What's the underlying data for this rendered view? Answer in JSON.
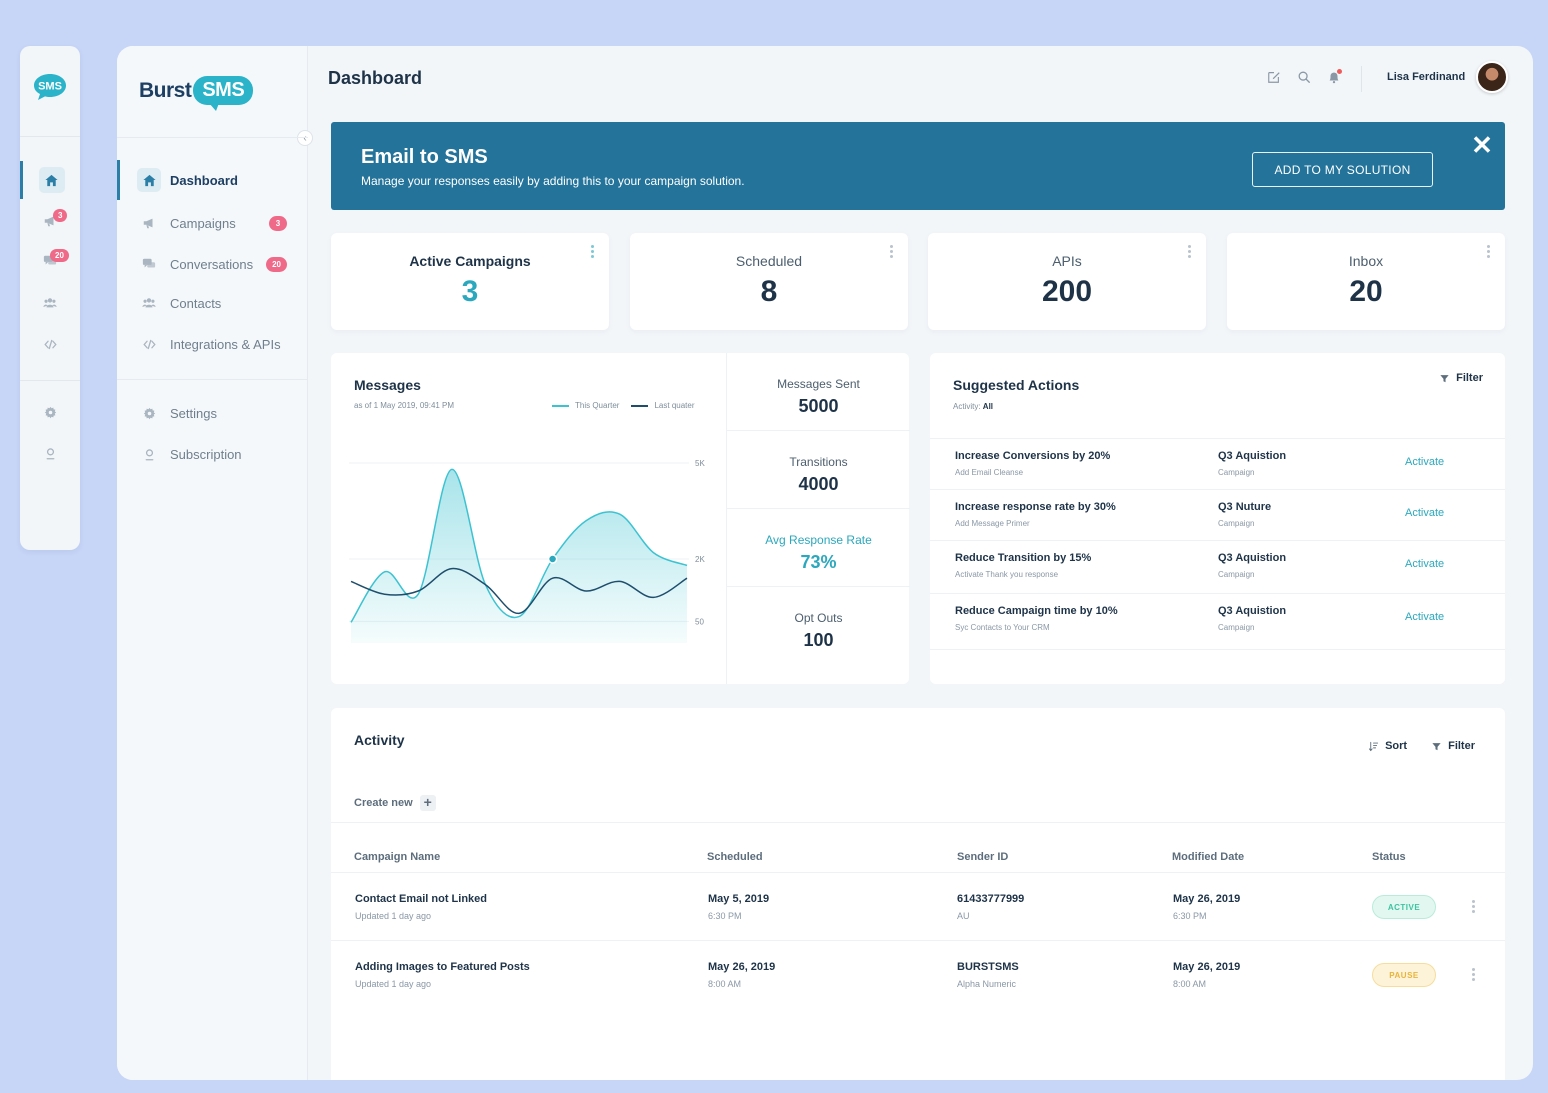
{
  "brand": {
    "name": "Burst",
    "badge": "SMS",
    "rail_logo": "SMS",
    "colors": {
      "accent": "#2ba8bd",
      "primary": "#23739a",
      "badge": "#ef6a88"
    }
  },
  "rail": {
    "items": [
      {
        "icon": "home-icon",
        "badge": ""
      },
      {
        "icon": "megaphone-icon",
        "badge": "3"
      },
      {
        "icon": "chat-icon",
        "badge": "20"
      },
      {
        "icon": "users-icon",
        "badge": ""
      },
      {
        "icon": "code-icon",
        "badge": ""
      },
      {
        "icon": "gear-icon",
        "badge": ""
      },
      {
        "icon": "user-badge-icon",
        "badge": ""
      }
    ]
  },
  "sidebar": {
    "items": [
      {
        "label": "Dashboard",
        "icon": "home-icon",
        "badge": ""
      },
      {
        "label": "Campaigns",
        "icon": "megaphone-icon",
        "badge": "3"
      },
      {
        "label": "Conversations",
        "icon": "chat-icon",
        "badge": "20"
      },
      {
        "label": "Contacts",
        "icon": "users-icon",
        "badge": ""
      },
      {
        "label": "Integrations & APIs",
        "icon": "code-icon",
        "badge": ""
      },
      {
        "label": "Settings",
        "icon": "gear-icon",
        "badge": ""
      },
      {
        "label": "Subscription",
        "icon": "user-badge-icon",
        "badge": ""
      }
    ]
  },
  "header": {
    "title": "Dashboard",
    "user_name": "Lisa Ferdinand",
    "icons": [
      "edit-icon",
      "search-icon",
      "bell-icon"
    ]
  },
  "banner": {
    "title": "Email to SMS",
    "subtitle": "Manage your responses easily by adding this to your campaign solution.",
    "button": "ADD TO MY SOLUTION"
  },
  "stats": [
    {
      "label": "Active Campaigns",
      "value": "3"
    },
    {
      "label": "Scheduled",
      "value": "8"
    },
    {
      "label": "APIs",
      "value": "200"
    },
    {
      "label": "Inbox",
      "value": "20"
    }
  ],
  "messages": {
    "title": "Messages",
    "subtitle": "as of 1 May 2019, 09:41 PM",
    "legend": [
      "This Quarter",
      "Last quater"
    ],
    "metrics": [
      {
        "label": "Messages Sent",
        "value": "5000"
      },
      {
        "label": "Transitions",
        "value": "4000"
      },
      {
        "label": "Avg Response Rate",
        "value": "73%"
      },
      {
        "label": "Opt Outs",
        "value": "100"
      }
    ]
  },
  "chart_data": {
    "type": "area",
    "title": "",
    "xlabel": "",
    "ylabel": "",
    "y_ticks": [
      "5K",
      "2K",
      "50"
    ],
    "x": [
      0,
      1,
      2,
      3,
      4,
      5,
      6,
      7,
      8,
      9,
      10
    ],
    "series": [
      {
        "name": "This Quarter",
        "values": [
          20,
          1600,
          900,
          4800,
          1200,
          200,
          2000,
          3200,
          3400,
          2200,
          1800
        ],
        "color": "#3cc3d1"
      },
      {
        "name": "Last quater",
        "values": [
          1300,
          900,
          1000,
          1700,
          1200,
          300,
          1400,
          1000,
          1300,
          800,
          1400
        ],
        "color": "#1e4e6c"
      }
    ]
  },
  "suggested": {
    "title": "Suggested Actions",
    "activity_label": "Activity:",
    "activity_value": "All",
    "filter": "Filter",
    "rows": [
      {
        "name": "Increase Conversions by 20%",
        "desc": "Add Email Cleanse",
        "campaign": "Q3 Aquistion",
        "type": "Campaign",
        "action": "Activate"
      },
      {
        "name": "Increase response rate by 30%",
        "desc": "Add Message Primer",
        "campaign": "Q3 Nuture",
        "type": "Campaign",
        "action": "Activate"
      },
      {
        "name": "Reduce Transition by 15%",
        "desc": "Activate Thank you response",
        "campaign": "Q3 Aquistion",
        "type": "Campaign",
        "action": "Activate"
      },
      {
        "name": "Reduce Campaign time by 10%",
        "desc": "Syc Contacts to Your CRM",
        "campaign": "Q3 Aquistion",
        "type": "Campaign",
        "action": "Activate"
      }
    ]
  },
  "activity": {
    "title": "Activity",
    "sort": "Sort",
    "filter": "Filter",
    "create_new": "Create new",
    "columns": [
      "Campaign Name",
      "Scheduled",
      "Sender ID",
      "Modified Date",
      "Status"
    ],
    "rows": [
      {
        "name": "Contact Email not Linked",
        "updated": "Updated 1 day ago",
        "sched_date": "May 5, 2019",
        "sched_time": "6:30 PM",
        "sender": "61433777999",
        "sender_sub": "AU",
        "mod_date": "May 26, 2019",
        "mod_time": "6:30 PM",
        "status": "ACTIVE",
        "status_color": "#3cc3a0"
      },
      {
        "name": "Adding Images to Featured Posts",
        "updated": "Updated 1 day ago",
        "sched_date": "May 26, 2019",
        "sched_time": "8:00 AM",
        "sender": "BURSTSMS",
        "sender_sub": "Alpha Numeric",
        "mod_date": "May 26, 2019",
        "mod_time": "8:00 AM",
        "status": "PAUSE",
        "status_color": "#e9b43c"
      }
    ]
  }
}
